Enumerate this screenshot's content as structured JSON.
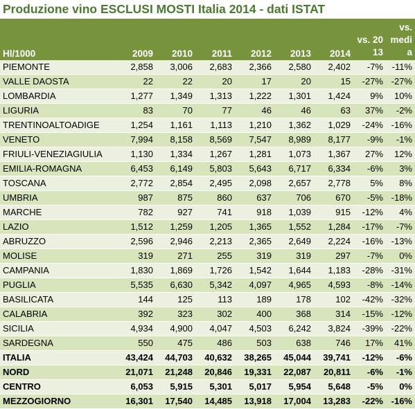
{
  "title": "Produzione vino ESCLUSI MOSTI Italia 2014 - dati ISTAT",
  "colors": {
    "title": "#4a7a2c",
    "header_bg": "#77933c",
    "row_light": "#ebf1de",
    "row_dark": "#d7e4bc"
  },
  "headers": [
    "Hl/1000",
    "2009",
    "2010",
    "2011",
    "2012",
    "2013",
    "2014",
    "vs. 2013",
    "vs. media"
  ],
  "rows": [
    {
      "name": "PIEMONTE",
      "values": [
        "2,858",
        "3,006",
        "2,683",
        "2,366",
        "2,580",
        "2,402",
        "-7%",
        "-11%"
      ]
    },
    {
      "name": "VALLE DAOSTA",
      "values": [
        "22",
        "22",
        "20",
        "17",
        "20",
        "15",
        "-27%",
        "-27%"
      ]
    },
    {
      "name": "LOMBARDIA",
      "values": [
        "1,277",
        "1,349",
        "1,313",
        "1,222",
        "1,301",
        "1,424",
        "9%",
        "10%"
      ]
    },
    {
      "name": "LIGURIA",
      "values": [
        "83",
        "70",
        "77",
        "46",
        "46",
        "63",
        "37%",
        "-2%"
      ]
    },
    {
      "name": "TRENTINOALTOADIGE",
      "values": [
        "1,254",
        "1,161",
        "1,113",
        "1,210",
        "1,362",
        "1,029",
        "-24%",
        "-16%"
      ]
    },
    {
      "name": "VENETO",
      "values": [
        "7,994",
        "8,158",
        "8,569",
        "7,547",
        "8,989",
        "8,177",
        "-9%",
        "-1%"
      ]
    },
    {
      "name": "FRIULI-VENEZIAGIULIA",
      "values": [
        "1,130",
        "1,334",
        "1,267",
        "1,281",
        "1,073",
        "1,367",
        "27%",
        "12%"
      ]
    },
    {
      "name": "EMILIA-ROMAGNA",
      "values": [
        "6,453",
        "6,149",
        "5,803",
        "5,643",
        "6,717",
        "6,334",
        "-6%",
        "3%"
      ]
    },
    {
      "name": "TOSCANA",
      "values": [
        "2,772",
        "2,854",
        "2,495",
        "2,098",
        "2,657",
        "2,778",
        "5%",
        "8%"
      ]
    },
    {
      "name": "UMBRIA",
      "values": [
        "987",
        "875",
        "860",
        "637",
        "706",
        "670",
        "-5%",
        "-18%"
      ]
    },
    {
      "name": "MARCHE",
      "values": [
        "782",
        "927",
        "741",
        "918",
        "1,039",
        "915",
        "-12%",
        "4%"
      ]
    },
    {
      "name": "LAZIO",
      "values": [
        "1,512",
        "1,259",
        "1,205",
        "1,365",
        "1,552",
        "1,284",
        "-17%",
        "-7%"
      ]
    },
    {
      "name": "ABRUZZO",
      "values": [
        "2,596",
        "2,946",
        "2,213",
        "2,365",
        "2,649",
        "2,224",
        "-16%",
        "-13%"
      ]
    },
    {
      "name": "MOLISE",
      "values": [
        "319",
        "271",
        "255",
        "319",
        "319",
        "297",
        "-7%",
        "0%"
      ]
    },
    {
      "name": "CAMPANIA",
      "values": [
        "1,830",
        "1,869",
        "1,726",
        "1,542",
        "1,644",
        "1,183",
        "-28%",
        "-31%"
      ]
    },
    {
      "name": "PUGLIA",
      "values": [
        "5,535",
        "6,630",
        "5,342",
        "4,097",
        "4,965",
        "4,593",
        "-8%",
        "-14%"
      ]
    },
    {
      "name": "BASILICATA",
      "values": [
        "144",
        "125",
        "113",
        "189",
        "178",
        "102",
        "-42%",
        "-32%"
      ]
    },
    {
      "name": "CALABRIA",
      "values": [
        "392",
        "323",
        "302",
        "400",
        "368",
        "314",
        "-15%",
        "-12%"
      ]
    },
    {
      "name": "SICILIA",
      "values": [
        "4,934",
        "4,900",
        "4,047",
        "4,503",
        "6,242",
        "3,824",
        "-39%",
        "-22%"
      ]
    },
    {
      "name": "SARDEGNA",
      "values": [
        "550",
        "475",
        "486",
        "503",
        "638",
        "746",
        "17%",
        "41%"
      ]
    }
  ],
  "totals": [
    {
      "name": "ITALIA",
      "values": [
        "43,424",
        "44,703",
        "40,632",
        "38,265",
        "45,044",
        "39,741",
        "-12%",
        "-6%"
      ]
    },
    {
      "name": "NORD",
      "values": [
        "21,071",
        "21,248",
        "20,846",
        "19,331",
        "22,087",
        "20,811",
        "-6%",
        "-1%"
      ]
    },
    {
      "name": "CENTRO",
      "values": [
        "6,053",
        "5,915",
        "5,301",
        "5,017",
        "5,954",
        "5,648",
        "-5%",
        "0%"
      ]
    },
    {
      "name": "MEZZOGIORNO",
      "values": [
        "16,301",
        "17,540",
        "14,485",
        "13,918",
        "17,004",
        "13,283",
        "-22%",
        "-16%"
      ]
    }
  ]
}
